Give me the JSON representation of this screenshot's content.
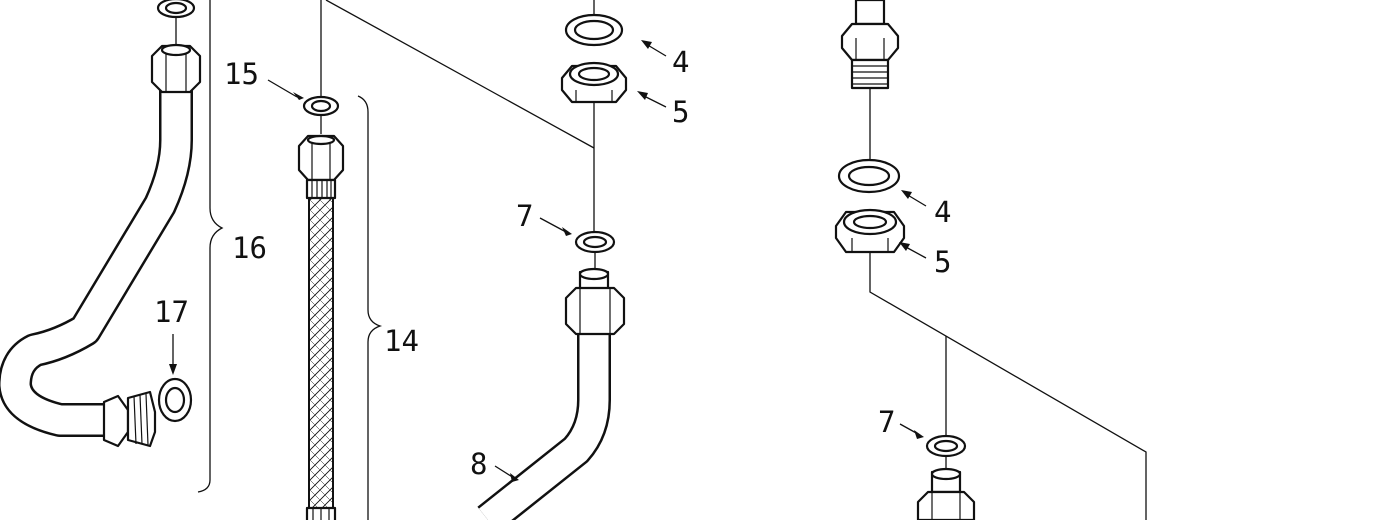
{
  "diagram": {
    "colors": {
      "ink": "#111111",
      "paper": "#ffffff"
    },
    "callouts": {
      "c15": "15",
      "c16": "16",
      "c17": "17",
      "c14": "14",
      "c4a": "4",
      "c5a": "5",
      "c7a": "7",
      "c8": "8",
      "c4b": "4",
      "c5b": "5",
      "c7b": "7"
    }
  }
}
